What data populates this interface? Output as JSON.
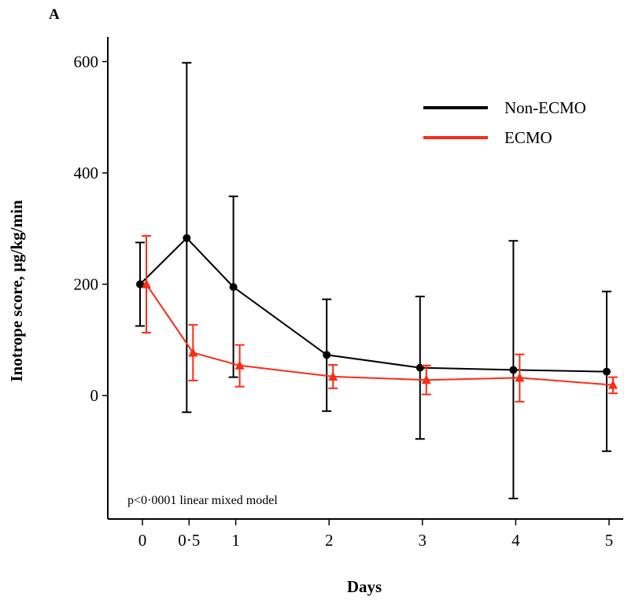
{
  "panel_label": "A",
  "chart_data": {
    "type": "line",
    "xlabel": "Days",
    "ylabel": "Inotrope score, µg/kg/min",
    "ylim": [
      -225,
      640
    ],
    "y_ticks": [
      0,
      200,
      400,
      600
    ],
    "x_ticks": [
      {
        "value": 0,
        "label": "0"
      },
      {
        "value": 0.5,
        "label": "0·5"
      },
      {
        "value": 1,
        "label": "1"
      },
      {
        "value": 2,
        "label": "2"
      },
      {
        "value": 3,
        "label": "3"
      },
      {
        "value": 4,
        "label": "4"
      },
      {
        "value": 5,
        "label": "5"
      }
    ],
    "grid": false,
    "legend_position": "top-right",
    "annotation": "p<0·0001 linear mixed model",
    "series": [
      {
        "name": "Non-ECMO",
        "color": "#000000",
        "marker": "circle",
        "points": [
          {
            "x": 0,
            "y": 200,
            "lo": 125,
            "hi": 275
          },
          {
            "x": 0.5,
            "y": 283,
            "lo": -30,
            "hi": 598
          },
          {
            "x": 1,
            "y": 195,
            "lo": 33,
            "hi": 358
          },
          {
            "x": 2,
            "y": 73,
            "lo": -28,
            "hi": 173
          },
          {
            "x": 3,
            "y": 50,
            "lo": -78,
            "hi": 178
          },
          {
            "x": 4,
            "y": 46,
            "lo": -185,
            "hi": 278
          },
          {
            "x": 5,
            "y": 43,
            "lo": -100,
            "hi": 187
          }
        ]
      },
      {
        "name": "ECMO",
        "color": "#ff2a14",
        "marker": "triangle",
        "points": [
          {
            "x": 0,
            "y": 200,
            "lo": 113,
            "hi": 287
          },
          {
            "x": 0.5,
            "y": 77,
            "lo": 27,
            "hi": 127
          },
          {
            "x": 1,
            "y": 54,
            "lo": 16,
            "hi": 91
          },
          {
            "x": 2,
            "y": 34,
            "lo": 13,
            "hi": 55
          },
          {
            "x": 3,
            "y": 28,
            "lo": 2,
            "hi": 54
          },
          {
            "x": 4,
            "y": 32,
            "lo": -11,
            "hi": 74
          },
          {
            "x": 5,
            "y": 19,
            "lo": 4,
            "hi": 33
          }
        ]
      }
    ]
  }
}
